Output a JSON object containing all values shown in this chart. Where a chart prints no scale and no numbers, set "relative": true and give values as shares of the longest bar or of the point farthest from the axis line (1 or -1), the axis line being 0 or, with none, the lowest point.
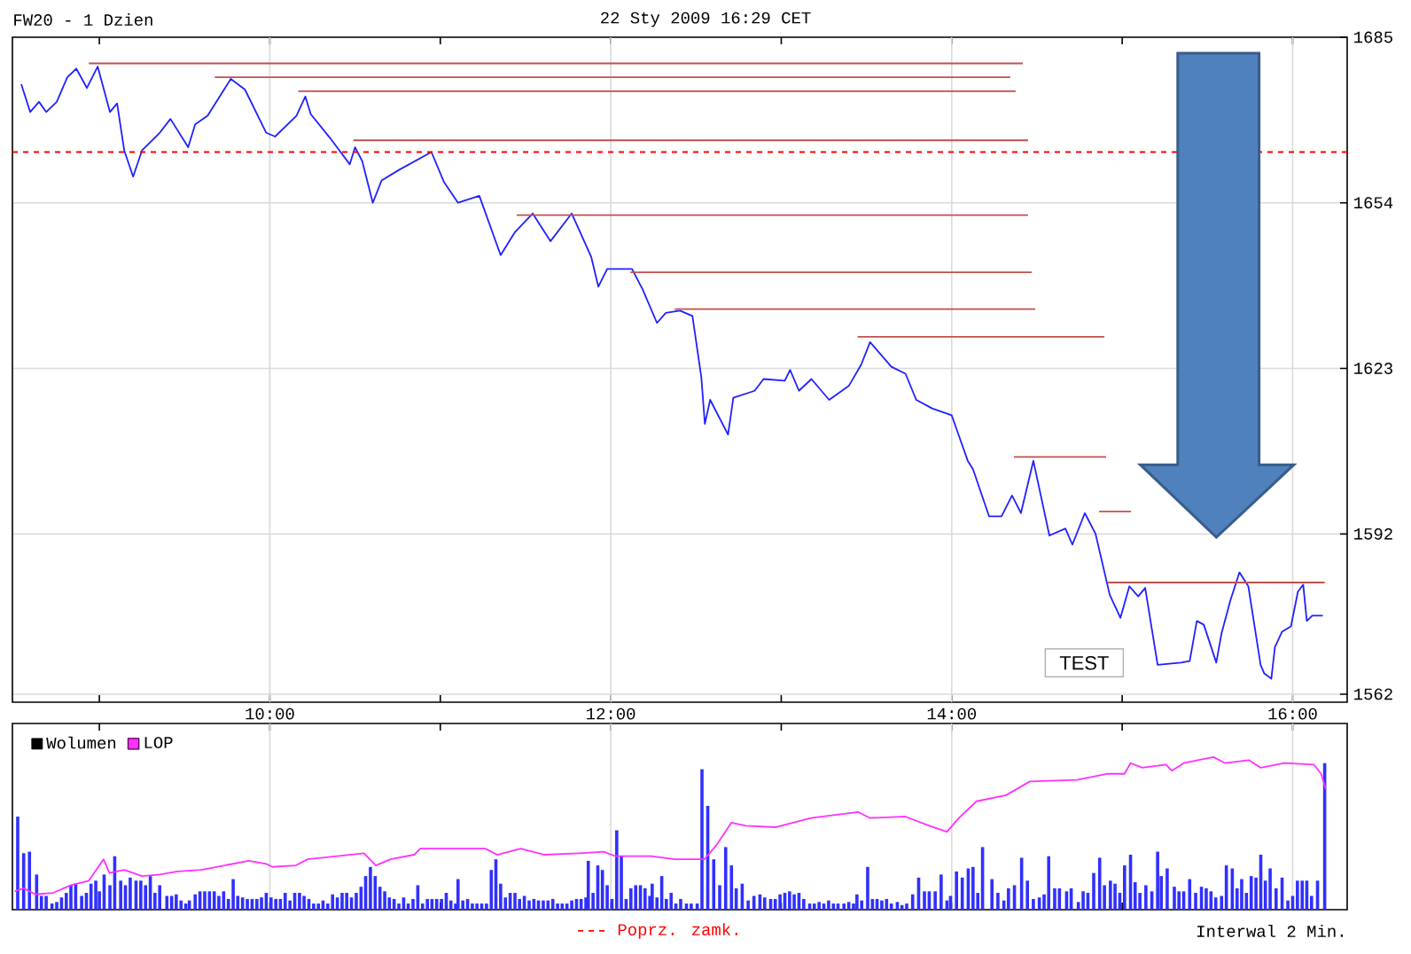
{
  "chart_data": [
    {
      "type": "line",
      "title": "FW20 - 1 Dzien",
      "subtitle": "22 Sty 2009 16:29 CET",
      "xlim": [
        8.49,
        16.32
      ],
      "ylim": [
        1560.5,
        1685
      ],
      "xticks": [
        {
          "value": 9,
          "label": null
        },
        {
          "value": 10,
          "label": "10:00"
        },
        {
          "value": 11,
          "label": null
        },
        {
          "value": 12,
          "label": "12:00"
        },
        {
          "value": 13,
          "label": null
        },
        {
          "value": 14,
          "label": "14:00"
        },
        {
          "value": 15,
          "label": null
        },
        {
          "value": 16,
          "label": "16:00"
        }
      ],
      "yticks": [
        1562,
        1592,
        1623,
        1654,
        1685
      ],
      "grid": true,
      "tick_labels": true,
      "ref_lines": [
        {
          "axis": "y",
          "value": 1663.5,
          "label": "Poprz. zamk.",
          "color": "#ff0000",
          "line_style": "dashed"
        }
      ],
      "annotations": [
        "TEST",
        "Interwal 2 Min."
      ],
      "series": [
        {
          "color": "#2020ff",
          "x": [
            8.542,
            8.594,
            8.646,
            8.688,
            8.75,
            8.812,
            8.865,
            8.927,
            8.99,
            9.062,
            9.104,
            9.146,
            9.198,
            9.25,
            9.354,
            9.417,
            9.521,
            9.562,
            9.635,
            9.771,
            9.854,
            9.979,
            10.031,
            10.156,
            10.208,
            10.24,
            10.354,
            10.469,
            10.5,
            10.542,
            10.604,
            10.656,
            10.76,
            10.948,
            11.021,
            11.104,
            11.229,
            11.354,
            11.438,
            11.542,
            11.646,
            11.771,
            11.885,
            11.927,
            11.979,
            12.125,
            12.188,
            12.271,
            12.323,
            12.406,
            12.479,
            12.531,
            12.552,
            12.583,
            12.688,
            12.719,
            12.844,
            12.896,
            13.021,
            13.052,
            13.104,
            13.177,
            13.281,
            13.396,
            13.469,
            13.521,
            13.646,
            13.729,
            13.792,
            13.885,
            14.0,
            14.094,
            14.125,
            14.219,
            14.292,
            14.354,
            14.406,
            14.479,
            14.573,
            14.667,
            14.708,
            14.781,
            14.844,
            14.927,
            14.99,
            15.042,
            15.094,
            15.135,
            15.208,
            15.344,
            15.396,
            15.438,
            15.479,
            15.552,
            15.583,
            15.635,
            15.688,
            15.74,
            15.812,
            15.833,
            15.875,
            15.896,
            15.938,
            15.99,
            16.031,
            16.062,
            16.083,
            16.115,
            16.177
          ],
          "values": [
            1676.2,
            1671.0,
            1672.9,
            1671.0,
            1672.9,
            1677.5,
            1679.1,
            1675.5,
            1679.5,
            1671.0,
            1672.6,
            1663.8,
            1658.9,
            1663.8,
            1667.1,
            1669.7,
            1664.4,
            1668.7,
            1670.3,
            1677.2,
            1675.2,
            1667.1,
            1666.4,
            1670.3,
            1673.9,
            1670.6,
            1666.1,
            1661.2,
            1664.4,
            1661.8,
            1654.0,
            1658.2,
            1660.2,
            1663.5,
            1657.9,
            1654.0,
            1655.3,
            1644.2,
            1648.5,
            1652.0,
            1646.8,
            1652.0,
            1643.9,
            1638.3,
            1641.6,
            1641.6,
            1637.7,
            1631.5,
            1633.4,
            1633.8,
            1632.8,
            1621.4,
            1612.6,
            1617.1,
            1610.6,
            1617.5,
            1618.8,
            1621.0,
            1620.7,
            1622.7,
            1618.8,
            1621.0,
            1617.1,
            1619.7,
            1623.7,
            1627.9,
            1623.3,
            1622.0,
            1617.1,
            1615.5,
            1614.2,
            1605.7,
            1604.1,
            1595.3,
            1595.3,
            1599.2,
            1595.9,
            1605.7,
            1591.7,
            1593.0,
            1590.0,
            1595.9,
            1592.0,
            1580.6,
            1576.3,
            1582.2,
            1580.3,
            1581.9,
            1567.5,
            1567.9,
            1568.2,
            1575.7,
            1575.0,
            1567.9,
            1573.4,
            1579.6,
            1584.8,
            1582.2,
            1567.5,
            1565.9,
            1564.9,
            1570.8,
            1573.7,
            1574.7,
            1581.2,
            1582.5,
            1575.7,
            1576.7,
            1576.7
          ]
        },
        {
          "color": "#c0504d",
          "x": [
            8.938,
            14.417
          ],
          "values": [
            1680.1,
            1680.1
          ]
        },
        {
          "color": "#c0504d",
          "x": [
            9.677,
            14.344
          ],
          "values": [
            1677.5,
            1677.5
          ]
        },
        {
          "color": "#c0504d",
          "x": [
            10.167,
            14.375
          ],
          "values": [
            1674.9,
            1674.9
          ]
        },
        {
          "color": "#c0504d",
          "x": [
            10.49,
            14.448
          ],
          "values": [
            1665.7,
            1665.7
          ]
        },
        {
          "color": "#c0504d",
          "x": [
            11.448,
            14.448
          ],
          "values": [
            1651.7,
            1651.7
          ]
        },
        {
          "color": "#c0504d",
          "x": [
            12.115,
            14.469
          ],
          "values": [
            1641.0,
            1641.0
          ]
        },
        {
          "color": "#c0504d",
          "x": [
            12.375,
            14.49
          ],
          "values": [
            1634.1,
            1634.1
          ]
        },
        {
          "color": "#c0504d",
          "x": [
            13.448,
            14.896
          ],
          "values": [
            1628.9,
            1628.9
          ]
        },
        {
          "color": "#c0504d",
          "x": [
            14.365,
            14.906
          ],
          "values": [
            1606.4,
            1606.4
          ]
        },
        {
          "color": "#c0504d",
          "x": [
            14.865,
            15.052
          ],
          "values": [
            1596.2,
            1596.2
          ]
        },
        {
          "color": "#c0504d",
          "x": [
            14.917,
            16.188
          ],
          "values": [
            1582.9,
            1582.9
          ]
        }
      ]
    },
    {
      "type": "bar",
      "relative": true,
      "legend": "top left",
      "grid": "x",
      "tick_labels": false,
      "xlim": [
        8.49,
        16.32
      ],
      "x": [
        8.521,
        8.556,
        8.59,
        8.632,
        8.66,
        8.688,
        8.722,
        8.75,
        8.778,
        8.806,
        8.833,
        8.861,
        8.896,
        8.924,
        8.951,
        8.979,
        9.0,
        9.028,
        9.062,
        9.09,
        9.125,
        9.153,
        9.181,
        9.215,
        9.243,
        9.271,
        9.299,
        9.326,
        9.354,
        9.396,
        9.424,
        9.451,
        9.479,
        9.507,
        9.528,
        9.562,
        9.59,
        9.618,
        9.646,
        9.674,
        9.701,
        9.729,
        9.757,
        9.785,
        9.812,
        9.84,
        9.868,
        9.896,
        9.924,
        9.951,
        9.979,
        10.007,
        10.035,
        10.062,
        10.09,
        10.118,
        10.146,
        10.174,
        10.201,
        10.229,
        10.257,
        10.285,
        10.312,
        10.34,
        10.368,
        10.396,
        10.424,
        10.451,
        10.479,
        10.507,
        10.535,
        10.562,
        10.59,
        10.618,
        10.646,
        10.674,
        10.701,
        10.729,
        10.757,
        10.785,
        10.812,
        10.84,
        10.868,
        10.896,
        10.924,
        10.951,
        10.979,
        11.007,
        11.035,
        11.062,
        11.09,
        11.104,
        11.132,
        11.16,
        11.188,
        11.215,
        11.243,
        11.271,
        11.299,
        11.326,
        11.354,
        11.382,
        11.41,
        11.438,
        11.465,
        11.493,
        11.521,
        11.549,
        11.576,
        11.604,
        11.632,
        11.66,
        11.688,
        11.715,
        11.743,
        11.771,
        11.799,
        11.826,
        11.854,
        11.868,
        11.896,
        11.924,
        11.951,
        11.979,
        12.007,
        12.035,
        12.062,
        12.09,
        12.118,
        12.146,
        12.174,
        12.201,
        12.229,
        12.243,
        12.271,
        12.299,
        12.326,
        12.354,
        12.382,
        12.41,
        12.444,
        12.472,
        12.507,
        12.535,
        12.569,
        12.604,
        12.639,
        12.674,
        12.708,
        12.736,
        12.771,
        12.806,
        12.84,
        12.875,
        12.903,
        12.938,
        12.965,
        12.993,
        13.021,
        13.049,
        13.076,
        13.104,
        13.132,
        13.167,
        13.194,
        13.222,
        13.25,
        13.278,
        13.306,
        13.333,
        13.368,
        13.396,
        13.424,
        13.444,
        13.472,
        13.507,
        13.535,
        13.562,
        13.59,
        13.618,
        13.646,
        13.681,
        13.708,
        13.736,
        13.771,
        13.806,
        13.84,
        13.868,
        13.903,
        13.938,
        13.972,
        13.993,
        14.028,
        14.062,
        14.097,
        14.125,
        14.153,
        14.181,
        14.236,
        14.271,
        14.306,
        14.333,
        14.368,
        14.41,
        14.444,
        14.479,
        14.514,
        14.542,
        14.569,
        14.604,
        14.632,
        14.674,
        14.701,
        14.743,
        14.771,
        14.799,
        14.833,
        14.868,
        14.896,
        14.931,
        14.958,
        14.986,
        15.014,
        15.049,
        15.076,
        15.104,
        15.139,
        15.174,
        15.208,
        15.229,
        15.264,
        15.306,
        15.333,
        15.361,
        15.396,
        15.431,
        15.465,
        15.493,
        15.521,
        15.549,
        15.583,
        15.611,
        15.646,
        15.674,
        15.701,
        15.729,
        15.757,
        15.785,
        15.813,
        15.84,
        15.868,
        15.903,
        15.938,
        15.972,
        16.0,
        16.028,
        16.056,
        16.083,
        16.111,
        16.146,
        16.188
      ],
      "series": [
        {
          "name": "Wolumen",
          "color": "#3030ff",
          "values": [
            0.61,
            0.37,
            0.38,
            0.23,
            0.09,
            0.09,
            0.04,
            0.05,
            0.08,
            0.11,
            0.16,
            0.17,
            0.09,
            0.11,
            0.17,
            0.19,
            0.12,
            0.23,
            0.16,
            0.35,
            0.19,
            0.16,
            0.21,
            0.19,
            0.19,
            0.16,
            0.22,
            0.11,
            0.16,
            0.09,
            0.09,
            0.1,
            0.06,
            0.04,
            0.06,
            0.1,
            0.12,
            0.12,
            0.12,
            0.12,
            0.09,
            0.12,
            0.07,
            0.2,
            0.09,
            0.08,
            0.07,
            0.07,
            0.07,
            0.08,
            0.11,
            0.08,
            0.07,
            0.07,
            0.11,
            0.06,
            0.11,
            0.11,
            0.09,
            0.07,
            0.04,
            0.04,
            0.06,
            0.04,
            0.1,
            0.08,
            0.11,
            0.11,
            0.08,
            0.11,
            0.15,
            0.22,
            0.28,
            0.22,
            0.15,
            0.12,
            0.08,
            0.07,
            0.04,
            0.08,
            0.04,
            0.07,
            0.16,
            0.04,
            0.07,
            0.07,
            0.07,
            0.07,
            0.11,
            0.06,
            0.04,
            0.2,
            0.06,
            0.07,
            0.04,
            0.04,
            0.04,
            0.04,
            0.26,
            0.33,
            0.17,
            0.08,
            0.11,
            0.11,
            0.07,
            0.09,
            0.06,
            0.07,
            0.06,
            0.06,
            0.06,
            0.07,
            0.04,
            0.04,
            0.04,
            0.06,
            0.07,
            0.07,
            0.08,
            0.32,
            0.11,
            0.29,
            0.26,
            0.16,
            0.07,
            0.52,
            0.35,
            0.07,
            0.14,
            0.16,
            0.16,
            0.14,
            0.09,
            0.17,
            0.08,
            0.22,
            0.07,
            0.11,
            0.04,
            0.07,
            0.04,
            0.04,
            0.04,
            0.92,
            0.68,
            0.33,
            0.16,
            0.41,
            0.29,
            0.14,
            0.17,
            0.06,
            0.09,
            0.1,
            0.08,
            0.07,
            0.07,
            0.1,
            0.11,
            0.12,
            0.1,
            0.11,
            0.07,
            0.04,
            0.04,
            0.05,
            0.04,
            0.06,
            0.04,
            0.04,
            0.04,
            0.05,
            0.04,
            0.1,
            0.06,
            0.28,
            0.07,
            0.07,
            0.06,
            0.07,
            0.04,
            0.05,
            0.03,
            0.04,
            0.1,
            0.21,
            0.12,
            0.12,
            0.12,
            0.23,
            0.06,
            0.09,
            0.25,
            0.21,
            0.27,
            0.28,
            0.11,
            0.41,
            0.2,
            0.11,
            0.06,
            0.14,
            0.16,
            0.34,
            0.19,
            0.07,
            0.08,
            0.1,
            0.35,
            0.14,
            0.14,
            0.12,
            0.14,
            0.05,
            0.12,
            0.11,
            0.24,
            0.34,
            0.16,
            0.19,
            0.17,
            0.11,
            0.29,
            0.36,
            0.18,
            0.11,
            0.16,
            0.12,
            0.38,
            0.22,
            0.27,
            0.15,
            0.12,
            0.12,
            0.2,
            0.11,
            0.15,
            0.14,
            0.12,
            0.08,
            0.09,
            0.29,
            0.27,
            0.14,
            0.2,
            0.11,
            0.22,
            0.21,
            0.36,
            0.19,
            0.27,
            0.14,
            0.21,
            0.06,
            0.09,
            0.19,
            0.19,
            0.19,
            0.09,
            0.19,
            0.96
          ]
        },
        {
          "name": "LOP",
          "type": "line",
          "color": "#ff30ff",
          "x": [
            8.503,
            8.556,
            8.625,
            8.729,
            8.833,
            8.938,
            9.024,
            9.059,
            9.146,
            9.25,
            9.354,
            9.458,
            9.597,
            9.736,
            9.875,
            9.979,
            10.014,
            10.153,
            10.222,
            10.396,
            10.552,
            10.622,
            10.708,
            10.847,
            10.882,
            11.056,
            11.264,
            11.333,
            11.472,
            11.611,
            11.819,
            11.958,
            12.028,
            12.236,
            12.375,
            12.549,
            12.618,
            12.708,
            12.792,
            12.965,
            13.174,
            13.451,
            13.521,
            13.729,
            13.868,
            13.972,
            14.042,
            14.146,
            14.319,
            14.458,
            14.736,
            14.91,
            15.014,
            15.049,
            15.118,
            15.257,
            15.292,
            15.361,
            15.535,
            15.604,
            15.743,
            15.813,
            15.951,
            16.125,
            16.167,
            16.194
          ],
          "values": [
            0.12,
            0.14,
            0.1,
            0.11,
            0.16,
            0.19,
            0.33,
            0.24,
            0.26,
            0.22,
            0.23,
            0.25,
            0.26,
            0.29,
            0.32,
            0.3,
            0.28,
            0.29,
            0.33,
            0.35,
            0.37,
            0.29,
            0.33,
            0.36,
            0.4,
            0.4,
            0.4,
            0.36,
            0.4,
            0.36,
            0.37,
            0.38,
            0.35,
            0.35,
            0.33,
            0.33,
            0.42,
            0.57,
            0.55,
            0.54,
            0.6,
            0.64,
            0.6,
            0.61,
            0.55,
            0.51,
            0.6,
            0.71,
            0.75,
            0.84,
            0.85,
            0.89,
            0.89,
            0.96,
            0.93,
            0.95,
            0.91,
            0.96,
            1.0,
            0.96,
            0.98,
            0.93,
            0.96,
            0.95,
            0.89,
            0.79
          ]
        }
      ]
    }
  ]
}
